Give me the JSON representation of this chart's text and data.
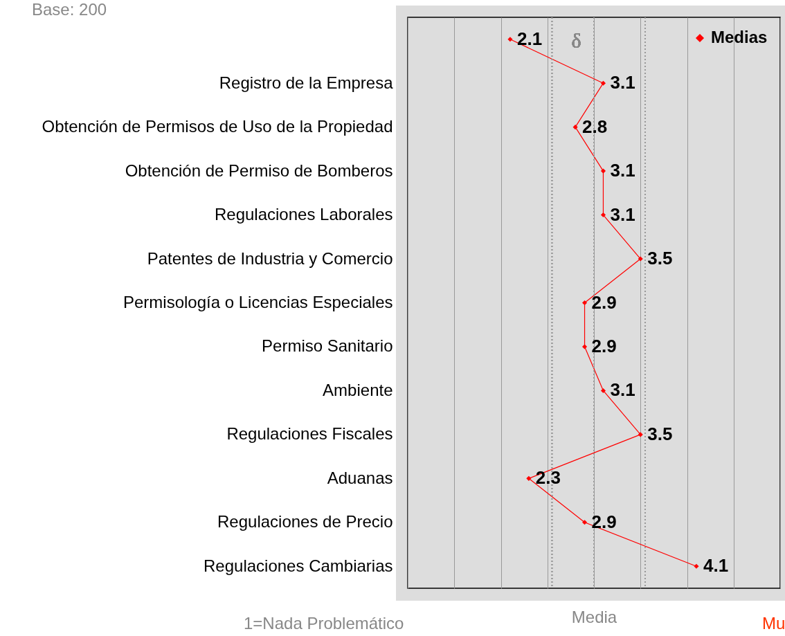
{
  "chart_data": {
    "type": "line",
    "orientation": "horizontal",
    "xlabel": "Media",
    "categories": [
      null,
      "Registro de la Empresa",
      "Obtención de Permisos de Uso de la Propiedad",
      "Obtención de Permiso de Bomberos",
      "Regulaciones Laborales",
      "Patentes de Industria y Comercio",
      "Permisología o Licencias Especiales",
      "Permiso Sanitario",
      "Ambiente",
      "Regulaciones Fiscales",
      "Aduanas",
      "Regulaciones de Precio",
      "Regulaciones Cambiarias"
    ],
    "series": [
      {
        "name": "Medias",
        "color": "#ff0000",
        "values": [
          2.1,
          3.1,
          2.8,
          3.1,
          3.1,
          3.5,
          2.9,
          2.9,
          3.1,
          3.5,
          2.3,
          2.9,
          4.1
        ]
      }
    ],
    "xlim": [
      1,
      5
    ],
    "xticks": [
      {
        "value": 1,
        "label": null
      },
      {
        "value": 1.5,
        "label": null
      },
      {
        "value": 2,
        "label": null
      },
      {
        "value": 2.5,
        "label": null
      },
      {
        "value": 3,
        "label": null
      },
      {
        "value": 3.5,
        "label": null
      },
      {
        "value": 4,
        "label": null
      },
      {
        "value": 4.5,
        "label": null
      },
      {
        "value": 5,
        "label": null
      }
    ],
    "tick_labels": "y",
    "grid": "x",
    "marker": "diamond",
    "line_style": "solid",
    "data_labels": true,
    "legend": "top right",
    "ref_lines": [
      {
        "axis": "x",
        "value": 2.55,
        "label": "δ",
        "line_style": "dotted",
        "color": "#999999"
      },
      {
        "axis": "x",
        "value": 3.0,
        "line_style": "dotted",
        "color": "#999999"
      },
      {
        "axis": "x",
        "value": 3.55,
        "line_style": "dotted",
        "color": "#999999"
      }
    ],
    "annotations": [
      "Base: 200",
      "1=Nada Problemático",
      "Mu"
    ]
  }
}
